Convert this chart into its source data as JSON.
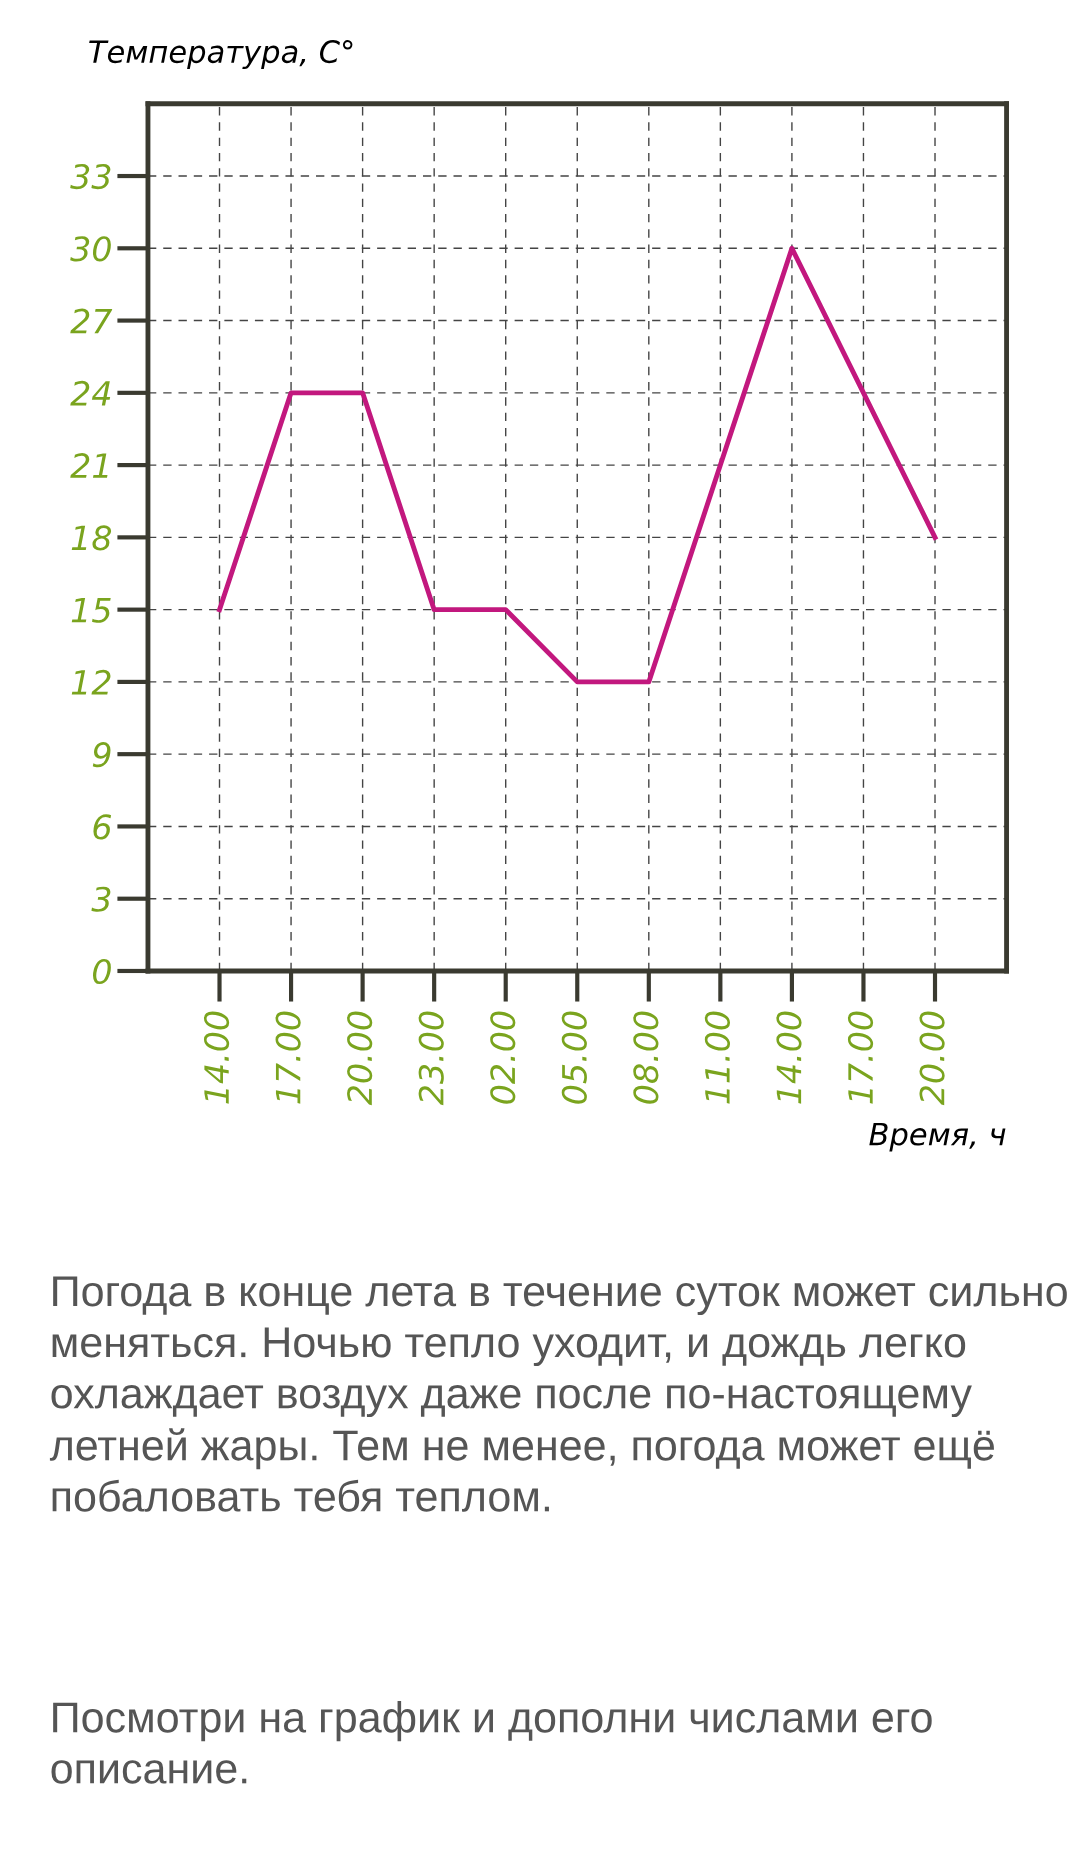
{
  "chart_data": {
    "type": "line",
    "xlabel": "Время, ч",
    "ylabel": "Температура, C°",
    "categories": [
      "14.00",
      "17.00",
      "20.00",
      "23.00",
      "02.00",
      "05.00",
      "08.00",
      "11.00",
      "14.00",
      "17.00",
      "20.00"
    ],
    "series": [
      {
        "color": "#c2187e",
        "values": [
          15,
          24,
          24,
          15,
          15,
          12,
          12,
          21,
          30,
          24,
          18
        ]
      }
    ],
    "ylim": [
      0,
      36
    ],
    "yticks": [
      0,
      3,
      6,
      9,
      12,
      15,
      18,
      21,
      24,
      27,
      30,
      33
    ],
    "grid": true,
    "marker": "none",
    "line_style": "solid",
    "annotations": [
      "Погода в конце лета в течение суток может сильно меняться. Ночью тепло уходит, и дождь легко охлаждает воздух даже после по-настоящему летней жары. Тем не менее, погода может ещё побаловать тебя теплом.",
      "Посмотри на график и дополни числами его описание."
    ]
  }
}
